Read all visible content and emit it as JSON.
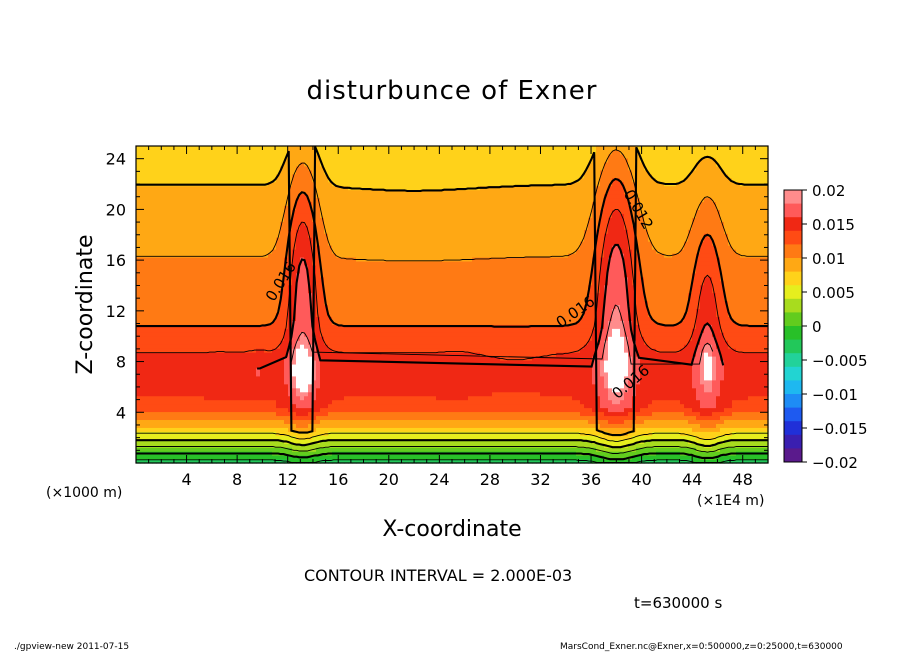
{
  "title": "disturbunce of Exner",
  "contour_note": "CONTOUR INTERVAL = 2.000E-03",
  "time_label": "t=630000 s",
  "footer_left": "./gpview-new  2011-07-15",
  "footer_right": "MarsCond_Exner.nc@Exner,x=0:500000,z=0:25000,t=630000",
  "chart_data": {
    "type": "heatmap",
    "title": "disturbunce of Exner",
    "xlabel": "X-coordinate",
    "ylabel": "Z-coordinate",
    "x_unit_left": "(×1000 m)",
    "x_unit_right": "(×1E4 m)",
    "xlim": [
      0,
      50
    ],
    "ylim": [
      0,
      25
    ],
    "xticks": [
      4,
      8,
      12,
      16,
      20,
      24,
      28,
      32,
      36,
      40,
      44,
      48
    ],
    "yticks": [
      4,
      8,
      12,
      16,
      20,
      24
    ],
    "contour_interval": 0.002,
    "contour_labels": [
      {
        "text": "0.016",
        "x": 11.8,
        "y": 14.1,
        "angle": -58
      },
      {
        "text": "0.012",
        "x": 39.4,
        "y": 19.8,
        "angle": 60
      },
      {
        "text": "0.016",
        "x": 35.0,
        "y": 11.6,
        "angle": -35
      },
      {
        "text": "0.016",
        "x": 39.4,
        "y": 6.1,
        "angle": -40
      }
    ],
    "colorbar": {
      "ticks": [
        0.02,
        0.015,
        0.01,
        0.005,
        0,
        -0.005,
        -0.01,
        -0.015,
        -0.02
      ],
      "tick_labels": [
        "0.02",
        "0.015",
        "0.01",
        "0.005",
        "0",
        "−0.005",
        "−0.01",
        "−0.015",
        "−0.02"
      ],
      "range": [
        -0.02,
        0.02
      ],
      "levels": 20
    }
  }
}
